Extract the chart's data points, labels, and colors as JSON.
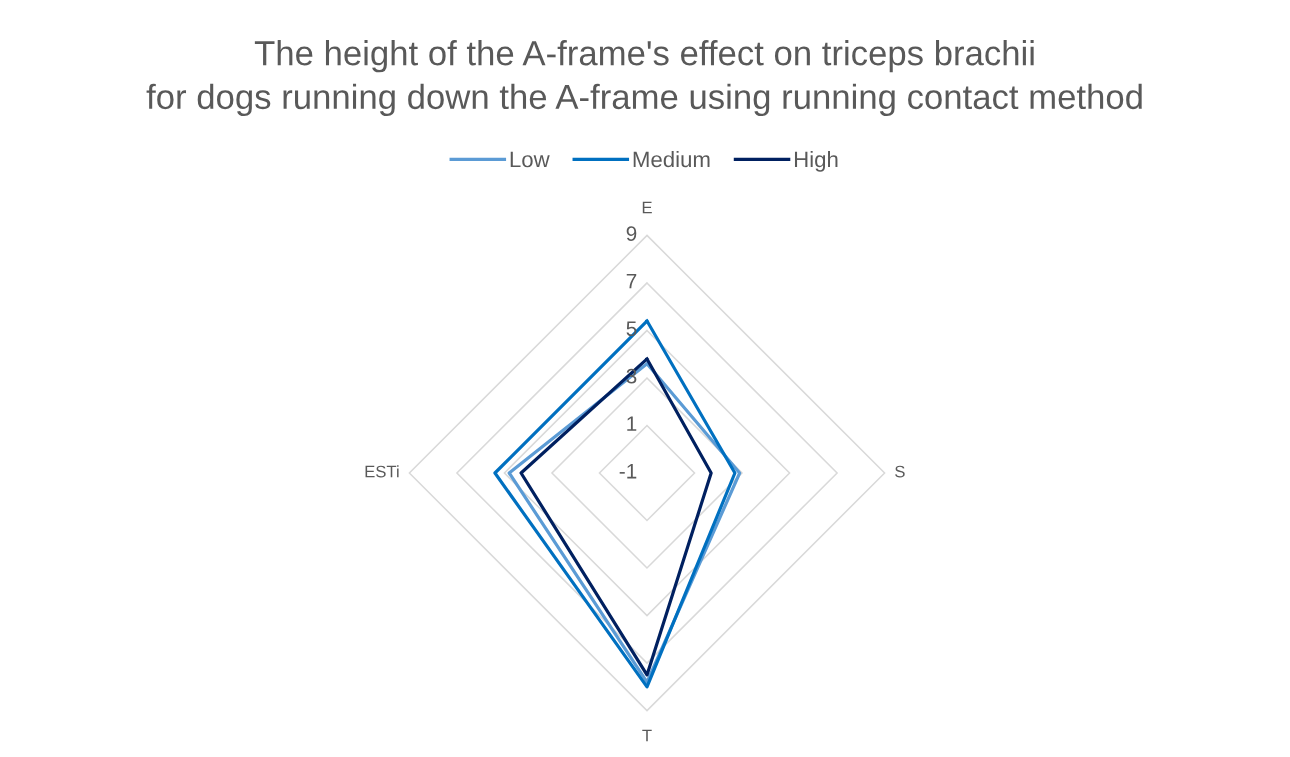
{
  "chart_data": {
    "type": "radar",
    "title": "The height of the A-frame's effect on triceps brachii\nfor dogs running down the A-frame using running contact method",
    "categories": [
      "E",
      "S",
      "T",
      "ESTi"
    ],
    "series": [
      {
        "name": "Low",
        "color": "#5b9bd5",
        "values": [
          3.6,
          2.9,
          7.8,
          4.8
        ]
      },
      {
        "name": "Medium",
        "color": "#0070c0",
        "values": [
          5.4,
          2.7,
          8.0,
          5.4
        ]
      },
      {
        "name": "High",
        "color": "#002060",
        "values": [
          3.8,
          1.7,
          7.5,
          4.3
        ]
      }
    ],
    "ylim": [
      -1,
      9
    ],
    "yticks": [
      -1,
      1,
      3,
      5,
      7,
      9
    ],
    "grid": true,
    "legend": "top"
  }
}
